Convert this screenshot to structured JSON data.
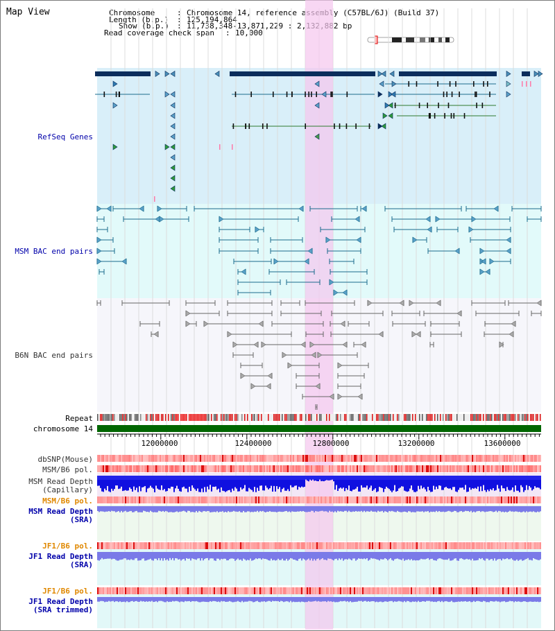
{
  "view": {
    "title": "Map View",
    "info": {
      "chromosome_key": "Chromosome",
      "chromosome_val": "Chromosome 14, reference assembly (C57BL/6J) (Build 37)",
      "length_key": "Length (b.p.)",
      "length_val": "125,194,864",
      "show_key": "Show (b.p.)",
      "show_val": "11,738,348-13,871,229 : 2,132,882 bp",
      "coverage_key": "Read coverage check span",
      "coverage_val": "10,000"
    }
  },
  "tracks": {
    "refseq": "RefSeq Genes",
    "msm_bac": "MSM BAC end pairs",
    "b6n_bac": "B6N BAC end pairs",
    "repeat": "Repeat",
    "chromosome": "chromosome 14",
    "dbsnp": "dbSNP(Mouse)",
    "msm_b6_pol": "MSM/B6 pol.",
    "msm_read_depth_cap_1": "MSM Read Depth",
    "msm_read_depth_cap_2": "(Capillary)",
    "msm_b6_pol_2": "MSM/B6 pol.",
    "msm_read_depth_sra_1": "MSM Read Depth",
    "msm_read_depth_sra_2": "(SRA)",
    "jf1_b6_pol": "JF1/B6 pol.",
    "jf1_read_depth_sra_1": "JF1 Read Depth",
    "jf1_read_depth_sra_2": "(SRA)",
    "jf1_b6_pol_2": "JF1/B6 pol.",
    "jf1_read_depth_trim_1": "JF1 Read Depth",
    "jf1_read_depth_trim_2": "(SRA trimmed)"
  },
  "axis": {
    "ticks": [
      "12000000",
      "12400000",
      "12800000",
      "13200000",
      "13600000"
    ]
  },
  "colors": {
    "refseq_bg": "#d9eff9",
    "msm_bac_bg": "#e2fafa",
    "b6n_bac_bg": "#f6f6fb",
    "highlight": "#f5c6ee",
    "gene_dark": "#0b2d5c",
    "msm_line": "#1a6b8c",
    "b6n_line": "#666666",
    "chromosome": "#006600",
    "depth_blue": "#1010e0",
    "depth_light": "#7a7ae8",
    "label_blue": "#0000aa",
    "label_orange": "#e08800"
  }
}
